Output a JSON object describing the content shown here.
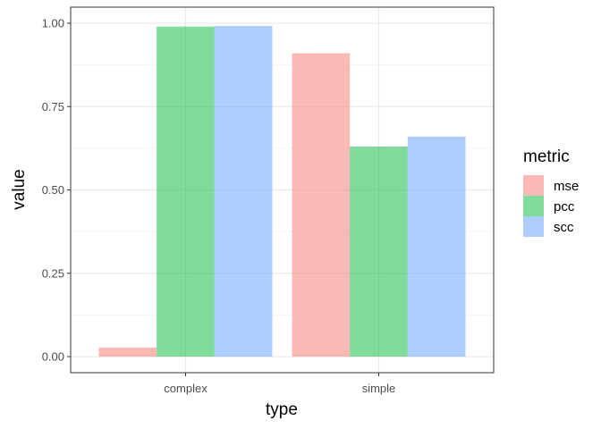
{
  "chart_data": {
    "type": "bar",
    "categories": [
      "complex",
      "simple"
    ],
    "series": [
      {
        "name": "mse",
        "values": [
          0.027,
          0.91
        ],
        "color": "#F8766D"
      },
      {
        "name": "pcc",
        "values": [
          0.99,
          0.63
        ],
        "color": "#00BA38"
      },
      {
        "name": "scc",
        "values": [
          0.992,
          0.66
        ],
        "color": "#619CFF"
      }
    ],
    "xlabel": "type",
    "ylabel": "value",
    "ylim": [
      0,
      1
    ],
    "yticks": [
      "0.00",
      "0.25",
      "0.50",
      "0.75",
      "1.00"
    ],
    "ytick_values": [
      0,
      0.25,
      0.5,
      0.75,
      1.0
    ],
    "legend": {
      "title": "metric",
      "position": "right"
    },
    "grid": true,
    "bar_opacity": 0.5
  }
}
